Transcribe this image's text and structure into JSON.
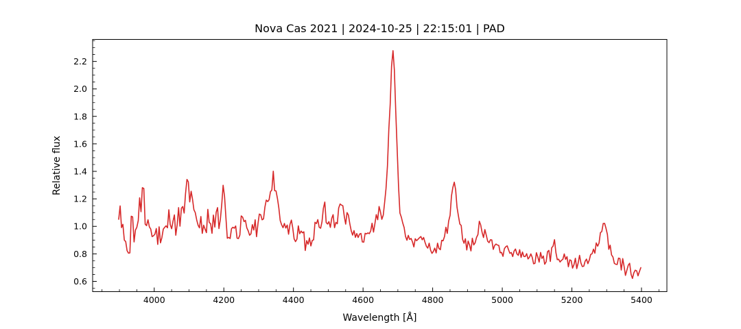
{
  "chart_data": {
    "type": "line",
    "title": "Nova Cas 2021 | 2024-10-25 | 22:15:01 | PAD",
    "xlabel": "Wavelength [Å]",
    "ylabel": "Relative flux",
    "line_color": "#d62728",
    "line_width": 1.6,
    "grid": false,
    "legend": "none",
    "xlim": [
      3823,
      5473
    ],
    "ylim": [
      0.525,
      2.36
    ],
    "x_ticks": [
      4000,
      4200,
      4400,
      4600,
      4800,
      5000,
      5200,
      5400
    ],
    "y_ticks": [
      0.6,
      0.8,
      1.0,
      1.2,
      1.4,
      1.6,
      1.8,
      2.0,
      2.2
    ],
    "x_minor_interval": 50,
    "y_minor_interval": 0.05,
    "wavelength_range": [
      3898,
      5398
    ],
    "sample_step": 4,
    "noise": {
      "seed": 10
    },
    "peaks": [
      {
        "wavelength": 3967,
        "peak_flux": 1.35
      },
      {
        "wavelength": 4100,
        "peak_flux": 1.41
      },
      {
        "wavelength": 4196,
        "peak_flux": 1.35
      },
      {
        "wavelength": 4340,
        "peak_flux": 1.43
      },
      {
        "wavelength": 4490,
        "peak_flux": 1.22
      },
      {
        "wavelength": 4540,
        "peak_flux": 1.21
      },
      {
        "wavelength": 4686,
        "peak_flux": 2.26
      },
      {
        "wavelength": 4861,
        "peak_flux": 1.36
      },
      {
        "wavelength": 4938,
        "peak_flux": 1.09
      },
      {
        "wavelength": 5152,
        "peak_flux": 0.93
      },
      {
        "wavelength": 5292,
        "peak_flux": 1.1
      }
    ],
    "anchors": [
      [
        3898,
        1.05,
        0.22
      ],
      [
        3906,
        0.93,
        0.16
      ],
      [
        3920,
        0.9,
        0.14
      ],
      [
        3936,
        0.95,
        0.13
      ],
      [
        3952,
        1.03,
        0.12
      ],
      [
        3967,
        1.22,
        0.12
      ],
      [
        3980,
        1.0,
        0.13
      ],
      [
        4000,
        0.97,
        0.13
      ],
      [
        4018,
        1.0,
        0.13
      ],
      [
        4034,
        1.12,
        0.14
      ],
      [
        4048,
        1.0,
        0.12
      ],
      [
        4064,
        1.02,
        0.12
      ],
      [
        4080,
        1.08,
        0.1
      ],
      [
        4097,
        1.32,
        0.08
      ],
      [
        4107,
        1.2,
        0.09
      ],
      [
        4118,
        1.04,
        0.1
      ],
      [
        4135,
        1.02,
        0.1
      ],
      [
        4155,
        1.05,
        0.1
      ],
      [
        4172,
        1.0,
        0.1
      ],
      [
        4188,
        1.08,
        0.1
      ],
      [
        4196,
        1.24,
        0.1
      ],
      [
        4206,
        1.05,
        0.1
      ],
      [
        4218,
        0.95,
        0.11
      ],
      [
        4228,
        0.9,
        0.11
      ],
      [
        4242,
        0.97,
        0.1
      ],
      [
        4258,
        1.0,
        0.09
      ],
      [
        4272,
        0.98,
        0.09
      ],
      [
        4288,
        1.0,
        0.08
      ],
      [
        4305,
        1.02,
        0.1
      ],
      [
        4320,
        1.1,
        0.08
      ],
      [
        4333,
        1.28,
        0.08
      ],
      [
        4341,
        1.36,
        0.07
      ],
      [
        4352,
        1.2,
        0.08
      ],
      [
        4365,
        1.04,
        0.08
      ],
      [
        4382,
        0.98,
        0.08
      ],
      [
        4400,
        0.97,
        0.08
      ],
      [
        4418,
        0.95,
        0.08
      ],
      [
        4437,
        0.89,
        0.08
      ],
      [
        4455,
        0.94,
        0.08
      ],
      [
        4472,
        1.0,
        0.08
      ],
      [
        4490,
        1.1,
        0.09
      ],
      [
        4505,
        1.02,
        0.07
      ],
      [
        4520,
        1.04,
        0.07
      ],
      [
        4538,
        1.12,
        0.07
      ],
      [
        4553,
        1.06,
        0.07
      ],
      [
        4568,
        0.98,
        0.06
      ],
      [
        4585,
        0.94,
        0.06
      ],
      [
        4602,
        0.94,
        0.06
      ],
      [
        4618,
        0.96,
        0.06
      ],
      [
        4632,
        1.0,
        0.06
      ],
      [
        4645,
        1.08,
        0.07
      ],
      [
        4658,
        1.12,
        0.06
      ],
      [
        4668,
        1.3,
        0.05
      ],
      [
        4676,
        1.8,
        0.05
      ],
      [
        4682,
        2.15,
        0.04
      ],
      [
        4686,
        2.26,
        0.02
      ],
      [
        4689,
        2.18,
        0.03
      ],
      [
        4694,
        1.85,
        0.04
      ],
      [
        4699,
        1.45,
        0.04
      ],
      [
        4705,
        1.15,
        0.05
      ],
      [
        4713,
        1.0,
        0.05
      ],
      [
        4722,
        0.93,
        0.05
      ],
      [
        4738,
        0.9,
        0.05
      ],
      [
        4755,
        0.88,
        0.05
      ],
      [
        4772,
        0.87,
        0.06
      ],
      [
        4790,
        0.85,
        0.06
      ],
      [
        4808,
        0.85,
        0.06
      ],
      [
        4822,
        0.87,
        0.05
      ],
      [
        4836,
        0.92,
        0.05
      ],
      [
        4847,
        1.05,
        0.05
      ],
      [
        4856,
        1.25,
        0.05
      ],
      [
        4861,
        1.33,
        0.04
      ],
      [
        4868,
        1.22,
        0.05
      ],
      [
        4877,
        1.02,
        0.05
      ],
      [
        4888,
        0.9,
        0.05
      ],
      [
        4900,
        0.85,
        0.05
      ],
      [
        4912,
        0.86,
        0.05
      ],
      [
        4924,
        0.92,
        0.05
      ],
      [
        4938,
        1.03,
        0.05
      ],
      [
        4950,
        0.93,
        0.05
      ],
      [
        4963,
        0.88,
        0.05
      ],
      [
        4978,
        0.85,
        0.05
      ],
      [
        4995,
        0.83,
        0.05
      ],
      [
        5012,
        0.81,
        0.05
      ],
      [
        5030,
        0.8,
        0.05
      ],
      [
        5048,
        0.79,
        0.05
      ],
      [
        5065,
        0.78,
        0.05
      ],
      [
        5082,
        0.78,
        0.05
      ],
      [
        5100,
        0.77,
        0.05
      ],
      [
        5118,
        0.77,
        0.05
      ],
      [
        5135,
        0.78,
        0.05
      ],
      [
        5150,
        0.85,
        0.07
      ],
      [
        5160,
        0.8,
        0.05
      ],
      [
        5178,
        0.77,
        0.05
      ],
      [
        5195,
        0.75,
        0.05
      ],
      [
        5212,
        0.74,
        0.05
      ],
      [
        5228,
        0.75,
        0.06
      ],
      [
        5245,
        0.77,
        0.05
      ],
      [
        5262,
        0.8,
        0.05
      ],
      [
        5275,
        0.86,
        0.05
      ],
      [
        5286,
        0.96,
        0.05
      ],
      [
        5292,
        1.04,
        0.04
      ],
      [
        5300,
        0.92,
        0.04
      ],
      [
        5312,
        0.82,
        0.05
      ],
      [
        5326,
        0.76,
        0.05
      ],
      [
        5340,
        0.72,
        0.05
      ],
      [
        5355,
        0.7,
        0.06
      ],
      [
        5370,
        0.68,
        0.06
      ],
      [
        5382,
        0.67,
        0.06
      ],
      [
        5392,
        0.68,
        0.05
      ],
      [
        5398,
        0.72,
        0.04
      ]
    ]
  }
}
